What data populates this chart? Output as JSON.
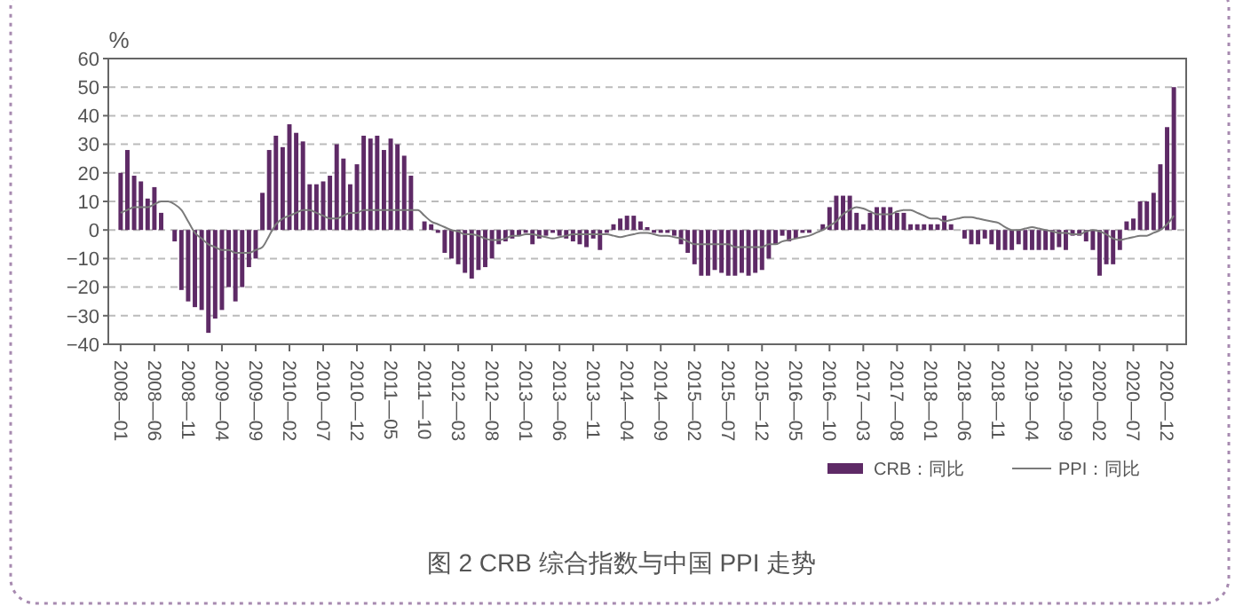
{
  "chart_data": {
    "type": "bar",
    "title": "图 2  CRB 综合指数与中国 PPI 走势",
    "ylabel": "%",
    "categories": [
      "2008—01",
      null,
      null,
      null,
      null,
      "2008—06",
      null,
      null,
      null,
      null,
      "2008—11",
      null,
      null,
      null,
      null,
      "2009—04",
      null,
      null,
      null,
      null,
      "2009—09",
      null,
      null,
      null,
      null,
      "2010—02",
      null,
      null,
      null,
      null,
      "2010—07",
      null,
      null,
      null,
      null,
      "2010—12",
      null,
      null,
      null,
      null,
      "2011—05",
      null,
      null,
      null,
      null,
      "2011—10",
      null,
      null,
      null,
      null,
      "2012—03",
      null,
      null,
      null,
      null,
      "2012—08",
      null,
      null,
      null,
      null,
      "2013—01",
      null,
      null,
      null,
      null,
      "2013—06",
      null,
      null,
      null,
      null,
      "2013—11",
      null,
      null,
      null,
      null,
      "2014—04",
      null,
      null,
      null,
      null,
      "2014—09",
      null,
      null,
      null,
      null,
      "2015—02",
      null,
      null,
      null,
      null,
      "2015—07",
      null,
      null,
      null,
      null,
      "2015—12",
      null,
      null,
      null,
      null,
      "2016—05",
      null,
      null,
      null,
      null,
      "2016—10",
      null,
      null,
      null,
      null,
      "2017—03",
      null,
      null,
      null,
      null,
      "2017—08",
      null,
      null,
      null,
      null,
      "2018—01",
      null,
      null,
      null,
      null,
      "2018—06",
      null,
      null,
      null,
      null,
      "2018—11",
      null,
      null,
      null,
      null,
      "2019—04",
      null,
      null,
      null,
      null,
      "2019—09",
      null,
      null,
      null,
      null,
      "2020—02",
      null,
      null,
      null,
      null,
      "2020—07",
      null,
      null,
      null,
      null,
      "2020—12",
      null
    ],
    "series": [
      {
        "name": "CRB：同比",
        "color": "#5e2a66",
        "values": [
          20,
          28,
          19,
          17,
          11,
          15,
          6,
          0,
          -4,
          -21,
          -25,
          -27,
          -28,
          -36,
          -31,
          -28,
          -20,
          -25,
          -20,
          -13,
          -10,
          13,
          28,
          33,
          29,
          37,
          34,
          31,
          16,
          16,
          17,
          19,
          30,
          25,
          16,
          23,
          33,
          32,
          33,
          28,
          32,
          30,
          26,
          19,
          0,
          3,
          2,
          -1,
          -8,
          -10,
          -12,
          -15,
          -17,
          -14,
          -13,
          -10,
          -5,
          -4,
          -3,
          -2,
          -1,
          -5,
          -3,
          -2,
          -1,
          -2,
          -3,
          -4,
          -5,
          -6,
          -3,
          -7,
          -1,
          2,
          4,
          5,
          5,
          3,
          1,
          -1,
          -1,
          -1,
          -2,
          -5,
          -8,
          -12,
          -16,
          -16,
          -14,
          -15,
          -16,
          -16,
          -15,
          -16,
          -15,
          -14,
          -10,
          -5,
          -2,
          -4,
          -3,
          -1,
          -1,
          0,
          2,
          8,
          12,
          12,
          12,
          6,
          2,
          6,
          8,
          8,
          8,
          6,
          6,
          2,
          2,
          2,
          2,
          2,
          5,
          2,
          0,
          -3,
          -5,
          -5,
          -3,
          -5,
          -7,
          -7,
          -7,
          -5,
          -7,
          -7,
          -7,
          -7,
          -7,
          -6,
          -7,
          -2,
          -2,
          -4,
          -7,
          -16,
          -12,
          -12,
          -7,
          3,
          4,
          10,
          10,
          13,
          23,
          36,
          50
        ]
      },
      {
        "name": "PPI：同比",
        "type": "line",
        "color": "#7a7a7a",
        "values": [
          6,
          7,
          8,
          8,
          8,
          9,
          10,
          10,
          9,
          7,
          3,
          -1,
          -3,
          -5,
          -6,
          -7,
          -7,
          -8,
          -8,
          -8,
          -7,
          -6,
          -2,
          2,
          4,
          5,
          6,
          7,
          7,
          6,
          5,
          4,
          4,
          5,
          6,
          6,
          7,
          7,
          7,
          7,
          7,
          7,
          7,
          7,
          7,
          5,
          3,
          2,
          1,
          0,
          -0.5,
          -1.5,
          -1.5,
          -2,
          -3,
          -3.5,
          -3.5,
          -3,
          -2,
          -2,
          -1.5,
          -1.5,
          -2,
          -2.5,
          -3,
          -2.5,
          -2,
          -1.5,
          -1.5,
          -1.5,
          -1.5,
          -1.5,
          -1.5,
          -2,
          -2.5,
          -2,
          -1.5,
          -1,
          -1,
          -1.5,
          -2,
          -2,
          -2.5,
          -3,
          -4,
          -5,
          -5,
          -5,
          -5,
          -5,
          -5,
          -6,
          -6,
          -6,
          -6,
          -6,
          -5,
          -5,
          -4,
          -3.5,
          -3,
          -2.5,
          -2,
          -1,
          0,
          1.5,
          3,
          5.5,
          7,
          8,
          7.5,
          6.5,
          5.5,
          5.5,
          5.5,
          6.5,
          7,
          7,
          6,
          5,
          4,
          4,
          3,
          3.5,
          4,
          4.5,
          4.5,
          4,
          3.5,
          3,
          2.5,
          1,
          0,
          0,
          0.5,
          1,
          0.5,
          0,
          -0.5,
          -1,
          -1,
          -1.5,
          -1.5,
          -0.5,
          0,
          -0.5,
          -1.5,
          -3,
          -3.5,
          -3,
          -2.5,
          -2,
          -2,
          -1,
          0,
          2,
          5
        ]
      }
    ],
    "ylim": [
      -40,
      60
    ],
    "yticks": [
      -40,
      -30,
      -20,
      -10,
      0,
      10,
      20,
      30,
      40,
      50,
      60
    ],
    "grid": "y",
    "legend": "bottom right"
  }
}
